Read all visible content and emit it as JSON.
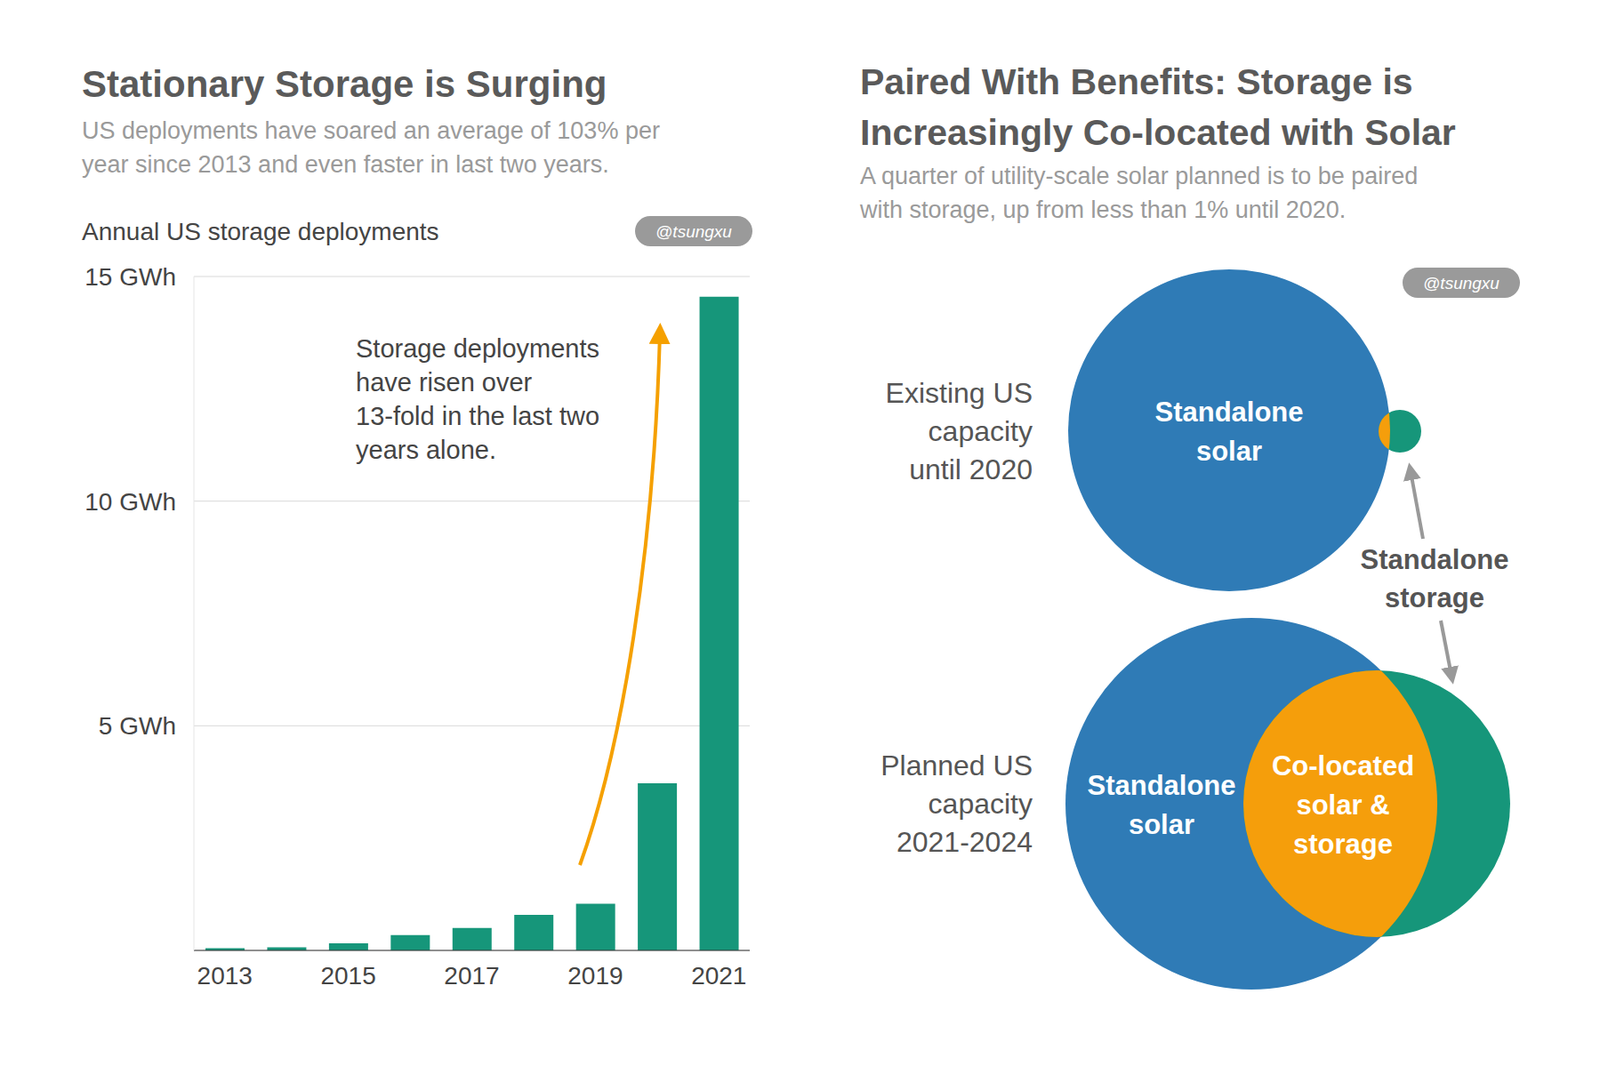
{
  "chart_data": {
    "type": "bar",
    "title": "Stationary Storage is Surging",
    "subtitle": [
      "US deployments have soared an average of 103% per",
      "year since 2013 and even faster in last two years."
    ],
    "ylabel": "Annual US storage deployments",
    "annotation": [
      "Storage deployments",
      "have risen over",
      "13-fold in the last two",
      "years alone."
    ],
    "watermark": "@tsungxu",
    "categories": [
      "2013",
      null,
      "2015",
      null,
      "2017",
      null,
      "2019",
      null,
      "2021"
    ],
    "values": [
      0.05,
      0.07,
      0.16,
      0.34,
      0.5,
      0.79,
      1.04,
      3.72,
      14.55
    ],
    "color": "#16967a",
    "ylim": [
      0,
      15
    ],
    "yticks": [
      {
        "value": 5,
        "label": "5 GWh"
      },
      {
        "value": 10,
        "label": "10 GWh"
      },
      {
        "value": 15,
        "label": "15 GWh"
      }
    ],
    "grid": true
  },
  "diagram": {
    "title": [
      "Paired With Benefits: Storage is",
      "Increasingly Co-located with Solar"
    ],
    "subtitle": [
      "A quarter of utility-scale solar planned is to be paired",
      "with storage, up from less than 1% until 2020."
    ],
    "watermark": "@tsungxu",
    "rows": [
      {
        "label": [
          "Existing US",
          "capacity",
          "until 2020"
        ],
        "solar_label": [
          "Standalone",
          "solar"
        ]
      },
      {
        "label": [
          "Planned US",
          "capacity",
          "2021-2024"
        ],
        "solar_label": [
          "Standalone",
          "solar"
        ],
        "overlap_label": [
          "Co-located",
          "solar &",
          "storage"
        ]
      }
    ],
    "storage_label": [
      "Standalone",
      "storage"
    ],
    "colors": {
      "solar": "#2f7bb6",
      "storage": "#16967a",
      "overlap": "#f59e0b"
    }
  }
}
